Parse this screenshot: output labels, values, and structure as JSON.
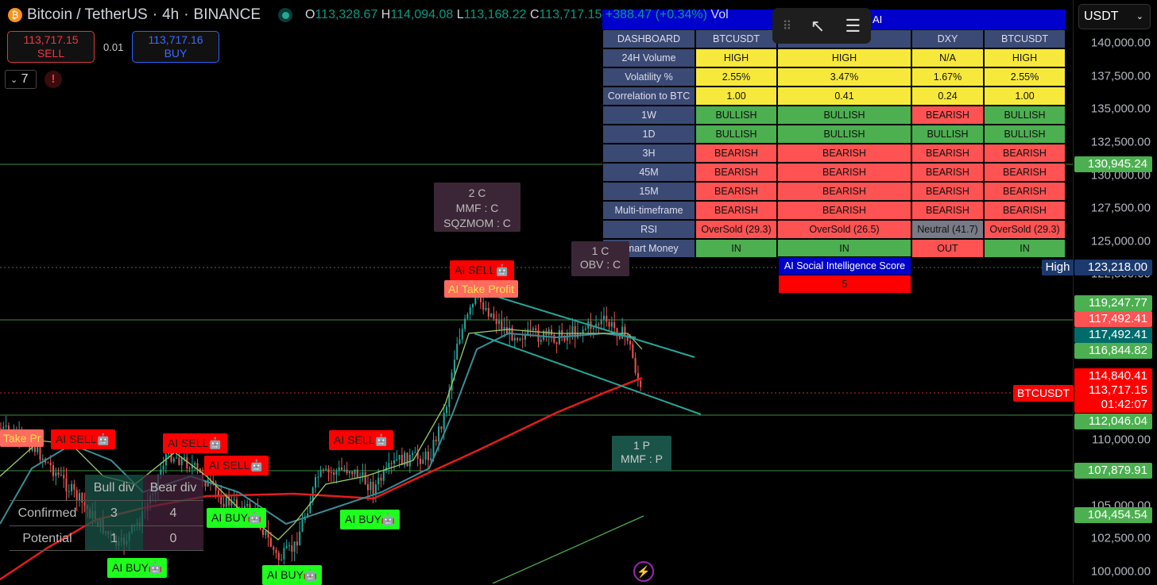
{
  "header": {
    "symbol": "Bitcoin / TetherUS",
    "interval": "4h",
    "exchange": "BINANCE",
    "separator": "·",
    "ohlc": {
      "o_label": "O",
      "o": "113,328.67",
      "h_label": "H",
      "h": "114,094.08",
      "l_label": "L",
      "l": "113,168.22",
      "c_label": "C",
      "c": "113,717.15",
      "change": "+388.47 (+0.34%)",
      "vol_label": "Vol"
    }
  },
  "trade": {
    "sell_price": "113,717.15",
    "sell_label": "SELL",
    "spread": "0.01",
    "buy_price": "113,717.16",
    "buy_label": "BUY"
  },
  "indicators": {
    "collapse_count": "7",
    "alert_icon": "!"
  },
  "currency_select": {
    "value": "USDT"
  },
  "dashboard": {
    "title": "AI",
    "headers": [
      "DASHBOARD",
      "BTCUSDT",
      "",
      "DXY",
      "BTCUSDT"
    ],
    "rows": [
      {
        "label": "24H Volume",
        "cells": [
          "HIGH",
          "HIGH",
          "N/A",
          "HIGH"
        ],
        "colors": [
          "y",
          "y",
          "y",
          "y"
        ]
      },
      {
        "label": "Volatility %",
        "cells": [
          "2.55%",
          "3.47%",
          "1.67%",
          "2.55%"
        ],
        "colors": [
          "y",
          "y",
          "y",
          "y"
        ]
      },
      {
        "label": "Correlation to BTC",
        "cells": [
          "1.00",
          "0.41",
          "0.24",
          "1.00"
        ],
        "colors": [
          "y",
          "y",
          "y",
          "y"
        ]
      },
      {
        "label": "1W",
        "cells": [
          "BULLISH",
          "BULLISH",
          "BEARISH",
          "BULLISH"
        ],
        "colors": [
          "g",
          "g",
          "r",
          "g"
        ]
      },
      {
        "label": "1D",
        "cells": [
          "BULLISH",
          "BULLISH",
          "BULLISH",
          "BULLISH"
        ],
        "colors": [
          "g",
          "g",
          "g",
          "g"
        ]
      },
      {
        "label": "3H",
        "cells": [
          "BEARISH",
          "BEARISH",
          "BEARISH",
          "BEARISH"
        ],
        "colors": [
          "r",
          "r",
          "r",
          "r"
        ]
      },
      {
        "label": "45M",
        "cells": [
          "BEARISH",
          "BEARISH",
          "BEARISH",
          "BEARISH"
        ],
        "colors": [
          "r",
          "r",
          "r",
          "r"
        ]
      },
      {
        "label": "15M",
        "cells": [
          "BEARISH",
          "BEARISH",
          "BEARISH",
          "BEARISH"
        ],
        "colors": [
          "r",
          "r",
          "r",
          "r"
        ]
      },
      {
        "label": "Multi-timeframe",
        "cells": [
          "BEARISH",
          "BEARISH",
          "BEARISH",
          "BEARISH"
        ],
        "colors": [
          "r",
          "r",
          "r",
          "r"
        ]
      },
      {
        "label": "RSI",
        "cells": [
          "OverSold (29.3)",
          "OverSold (26.5)",
          "Neutral (41.7)",
          "OverSold (29.3)"
        ],
        "colors": [
          "r",
          "r",
          "n",
          "r"
        ]
      },
      {
        "label": "Smart Money",
        "cells": [
          "IN",
          "IN",
          "OUT",
          "IN"
        ],
        "colors": [
          "g",
          "g",
          "r",
          "g"
        ]
      }
    ],
    "social_title": "AI Social Intelligence Score",
    "social_value": "5",
    "colors": {
      "y": "#f7e93b",
      "g": "#4caf50",
      "r": "#ff5252",
      "n": "#787b86",
      "header": "#3b4a74",
      "title": "#0000cc"
    }
  },
  "labels": {
    "sell": "AI SELL🤖",
    "buy": "AI BUY🤖",
    "take_profit": "AI Take Profit",
    "take_profit_partial": "Take Pr",
    "div1": [
      "2 C",
      "MMF : C",
      "SQZMOM : C"
    ],
    "div2": [
      "1 C",
      "OBV : C"
    ],
    "div3": [
      "1 P",
      "MMF : P"
    ]
  },
  "divergence_table": {
    "col1": "Bull div",
    "col2": "Bear div",
    "rows": [
      {
        "label": "Confirmed",
        "bull": "3",
        "bear": "4"
      },
      {
        "label": "Potential",
        "bull": "1",
        "bear": "0"
      }
    ]
  },
  "price_axis": {
    "ticks": [
      "140,000.00",
      "137,500.00",
      "135,000.00",
      "132,500.00",
      "130,000.00",
      "127,500.00",
      "125,000.00",
      "122,500.00",
      "110,000.00",
      "105,000.00",
      "102,500.00",
      "100,000.00"
    ],
    "badges": {
      "b130945": "130,945.24",
      "high_label": "High",
      "high": "123,218.00",
      "b119247": "119,247.77",
      "b117492r": "117,492.41",
      "b117492t": "117,492.41",
      "b116844": "116,844.82",
      "b114840": "114,840.41",
      "last": "113,717.15",
      "countdown": "01:42:07",
      "symbol_tag": "BTCUSDT",
      "b112046": "112,046.04",
      "b107879": "107,879.91",
      "b104454": "104,454.54"
    }
  }
}
